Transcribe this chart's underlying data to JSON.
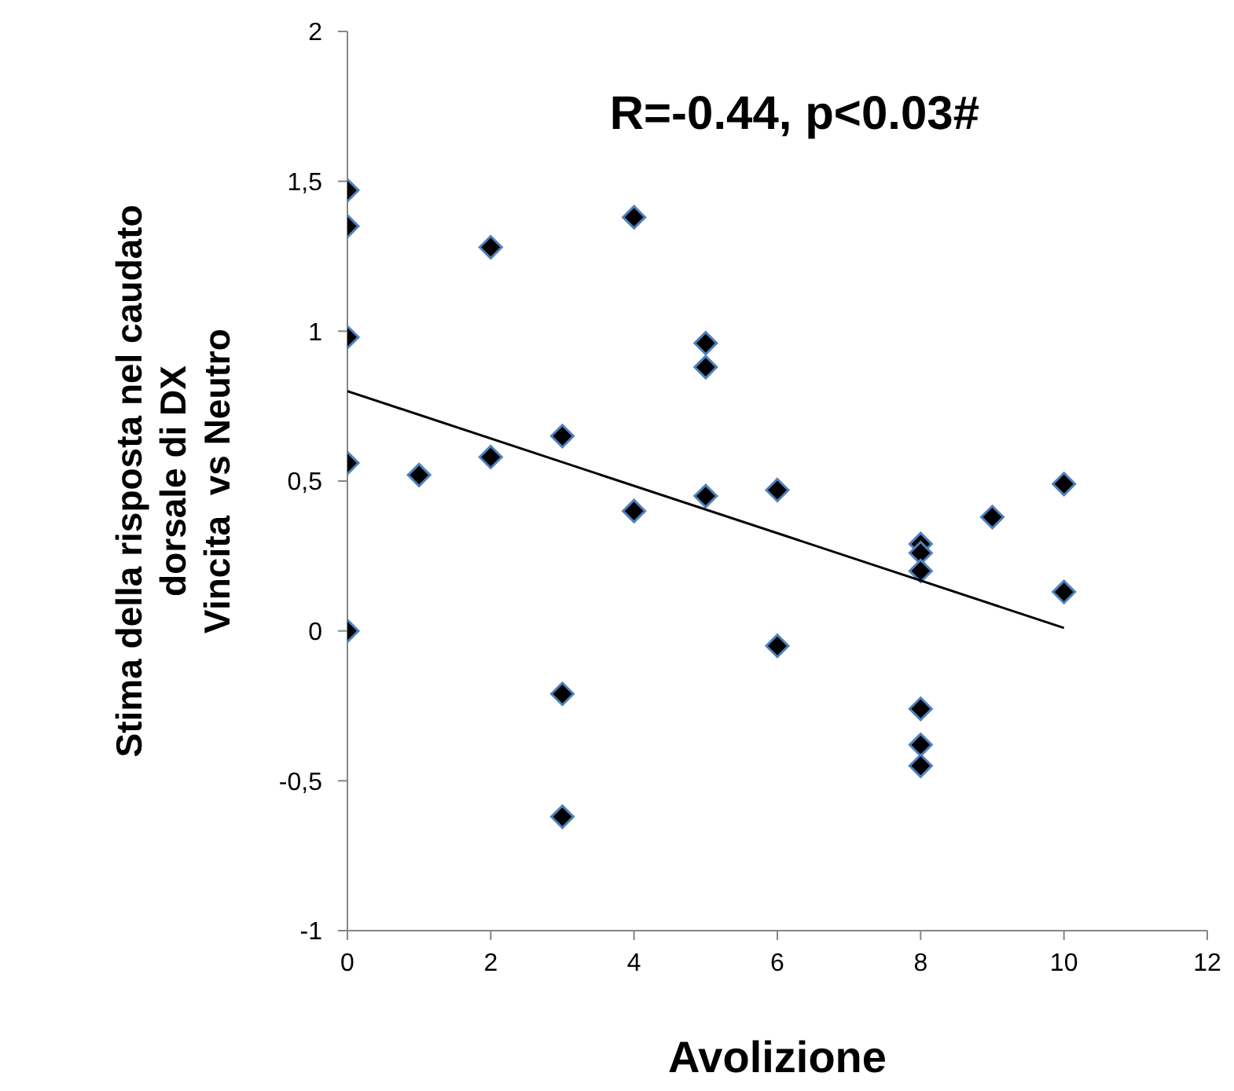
{
  "chart_data": {
    "type": "scatter",
    "xlabel": "Avolizione",
    "ylabel": "Stima della risposta nel caudato\ndorsale di DX\nVincita  vs Neutro",
    "annotations": [
      "R=-0.44, p<0.03#"
    ],
    "xlim": [
      0,
      12
    ],
    "xticks": [
      0,
      2,
      4,
      6,
      8,
      10,
      12
    ],
    "ylim": [
      -1,
      2
    ],
    "yticks": [
      {
        "value": -1,
        "label": "-1"
      },
      {
        "value": -0.5,
        "label": "-0,5"
      },
      {
        "value": 0,
        "label": "0"
      },
      {
        "value": 0.5,
        "label": "0,5"
      },
      {
        "value": 1,
        "label": "1"
      },
      {
        "value": 1.5,
        "label": "1,5"
      },
      {
        "value": 2,
        "label": "2"
      }
    ],
    "marker": "diamond",
    "series": [
      {
        "color": "#000000",
        "x": [
          0,
          0,
          0,
          0,
          0,
          1,
          2,
          2,
          3,
          3,
          3,
          4,
          4,
          5,
          5,
          5,
          6,
          6,
          8,
          8,
          8,
          8,
          8,
          8,
          9,
          10,
          10
        ],
        "values": [
          1.47,
          1.35,
          0.98,
          0.56,
          0,
          0.52,
          1.28,
          0.58,
          0.65,
          -0.21,
          -0.62,
          1.38,
          0.4,
          0.96,
          0.88,
          0.45,
          0.47,
          -0.05,
          0.29,
          0.26,
          0.2,
          -0.26,
          -0.38,
          -0.45,
          0.38,
          0.49,
          0.13
        ]
      },
      {
        "type": "line",
        "marker": "none",
        "color": "#000000",
        "x": [
          0,
          10
        ],
        "values": [
          0.8,
          0.01
        ]
      }
    ]
  }
}
